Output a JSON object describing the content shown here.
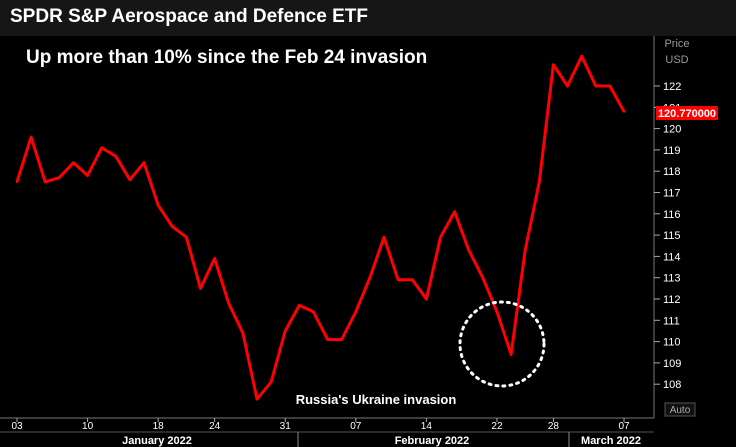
{
  "title": "SPDR S&P Aerospace and Defence ETF",
  "chart_data": {
    "type": "line",
    "subtitle": "Up more than 10% since the Feb 24 invasion",
    "axis_unit": [
      "Price",
      "USD"
    ],
    "current_value_label": "120.770000",
    "auto_label": "Auto",
    "annotation": "Russia's Ukraine invasion",
    "ylim": [
      107,
      123
    ],
    "y_ticks": [
      108,
      109,
      110,
      111,
      112,
      113,
      114,
      115,
      116,
      117,
      118,
      119,
      120,
      121,
      122
    ],
    "day_ticks": [
      "03",
      "10",
      "18",
      "24",
      "31",
      "07",
      "14",
      "22",
      "28",
      "07"
    ],
    "months": [
      "January 2022",
      "February 2022",
      "March 2022"
    ],
    "series": [
      {
        "color": "#ff0000",
        "values": [
          117.5,
          119.6,
          117.5,
          117.7,
          118.4,
          117.8,
          119.1,
          118.7,
          117.6,
          118.4,
          116.4,
          115.4,
          114.9,
          112.5,
          113.9,
          111.8,
          110.4,
          107.3,
          108.1,
          110.5,
          111.7,
          111.4,
          110.1,
          110.1,
          111.4,
          113.0,
          114.9,
          112.9,
          112.9,
          112.0,
          114.9,
          116.1,
          114.3,
          113.0,
          111.4,
          109.4,
          114.3,
          117.5,
          123.0,
          122.0,
          123.4,
          122.0,
          122.0,
          120.8
        ]
      }
    ],
    "colors": {
      "line": "#ff0000",
      "grid_text": "#ffffff",
      "price_label_bg": "#ff0000",
      "circle": "#ffffff"
    }
  }
}
